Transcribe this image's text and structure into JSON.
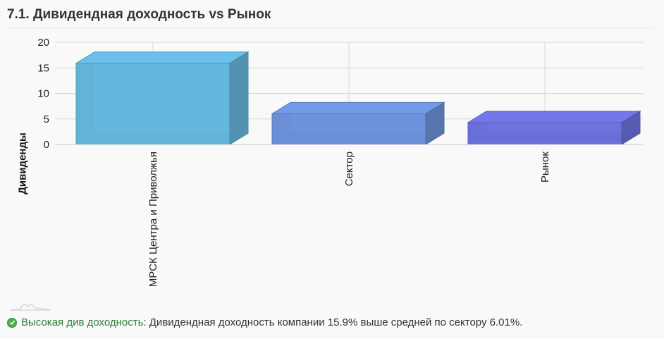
{
  "section": {
    "title": "7.1. Дивидендная доходность vs Рынок"
  },
  "chart_data": {
    "type": "bar",
    "categories": [
      "МРСК Центра и Приволжья",
      "Сектор",
      "Рынок"
    ],
    "values": [
      15.9,
      6.01,
      4.3
    ],
    "colors": [
      "#63b3d8",
      "#6a8fd6",
      "#6a6fd8"
    ],
    "title": "",
    "xlabel": "",
    "ylabel": "Дивиденды",
    "ylim": [
      0,
      20
    ],
    "yticks": [
      0,
      5,
      10,
      15,
      20
    ],
    "grid": true,
    "three_d": true
  },
  "footer": {
    "icon": "check-circle-icon",
    "verdict": "Высокая див доходность",
    "separator": ":",
    "text": " Дивидендная доходность компании 15.9% выше средней по сектору 6.01%."
  }
}
